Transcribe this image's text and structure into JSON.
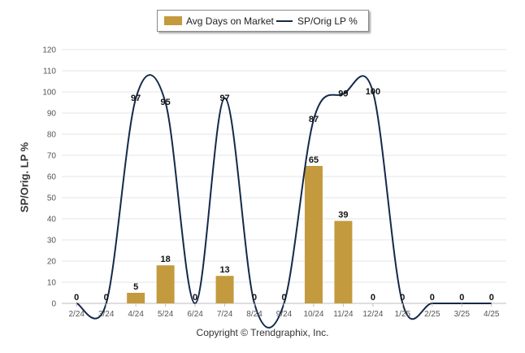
{
  "colors": {
    "bar": "#C49A3E",
    "line": "#14294B"
  },
  "legend": {
    "bar_label": "Avg Days on Market",
    "line_label": "SP/Orig LP %",
    "placement": "top-center"
  },
  "copyright": "Copyright © Trendgraphix, Inc.",
  "chart_data": {
    "type": "bar",
    "categories": [
      "2/24",
      "3/24",
      "4/24",
      "5/24",
      "6/24",
      "7/24",
      "8/24",
      "9/24",
      "10/24",
      "11/24",
      "12/24",
      "1/25",
      "2/25",
      "3/25",
      "4/25"
    ],
    "series": [
      {
        "name": "Avg Days on Market",
        "type": "bar",
        "values": [
          0,
          0,
          5,
          18,
          0,
          13,
          0,
          0,
          65,
          39,
          0,
          0,
          0,
          0,
          0
        ]
      },
      {
        "name": "SP/Orig LP %",
        "type": "line",
        "values": [
          0,
          0,
          97,
          95,
          0,
          97,
          0,
          0,
          87,
          99,
          100,
          0,
          0,
          0,
          0
        ]
      }
    ],
    "bar_labels": [
      "0",
      "0",
      "5",
      "18",
      "0",
      "13",
      "0",
      "0",
      "65",
      "39",
      "0",
      "0",
      "0",
      "0",
      "0"
    ],
    "line_labels": [
      "",
      "",
      "97",
      "95",
      "",
      "97",
      "",
      "",
      "87",
      "99",
      "100",
      "",
      "",
      "",
      ""
    ],
    "ylabel": "SP/Orig. LP %",
    "ylim": [
      0,
      120
    ],
    "yticks": [
      0,
      10,
      20,
      30,
      40,
      50,
      60,
      70,
      80,
      90,
      100,
      110,
      120
    ],
    "grid": true
  }
}
